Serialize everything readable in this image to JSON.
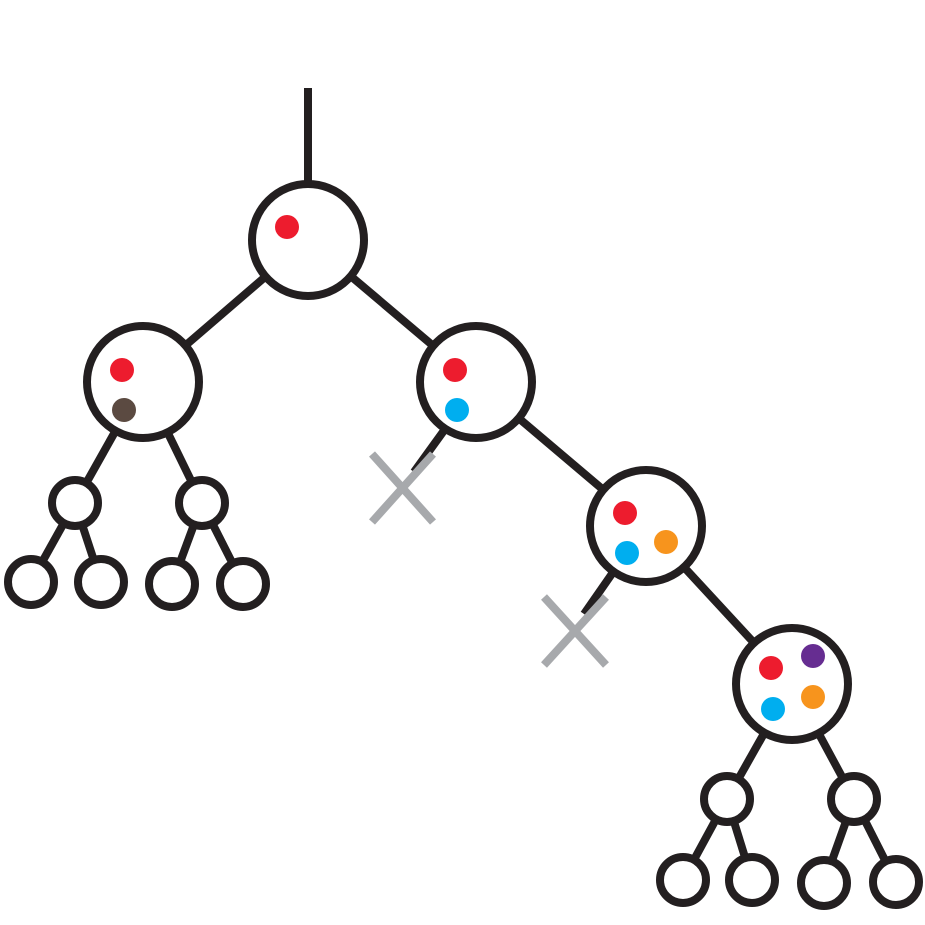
{
  "colors": {
    "line": "#231f20",
    "cut_mark": "#a7a9ac",
    "background": "#ffffff",
    "dot_red": "#ed1c2e",
    "dot_brown": "#5b4a41",
    "dot_blue": "#00aeef",
    "dot_orange": "#f7941d",
    "dot_purple": "#662d91"
  },
  "tree": {
    "root": {
      "dots": [
        "dot_red"
      ]
    },
    "left_child": {
      "dots": [
        "dot_red",
        "dot_brown"
      ],
      "leaves": 4
    },
    "right_child": {
      "dots": [
        "dot_red",
        "dot_blue"
      ],
      "pruned_branch": true
    },
    "level_3": {
      "dots": [
        "dot_red",
        "dot_blue",
        "dot_orange"
      ],
      "pruned_branch": true
    },
    "level_4": {
      "dots": [
        "dot_red",
        "dot_purple",
        "dot_blue",
        "dot_orange"
      ],
      "leaves": 4
    }
  }
}
